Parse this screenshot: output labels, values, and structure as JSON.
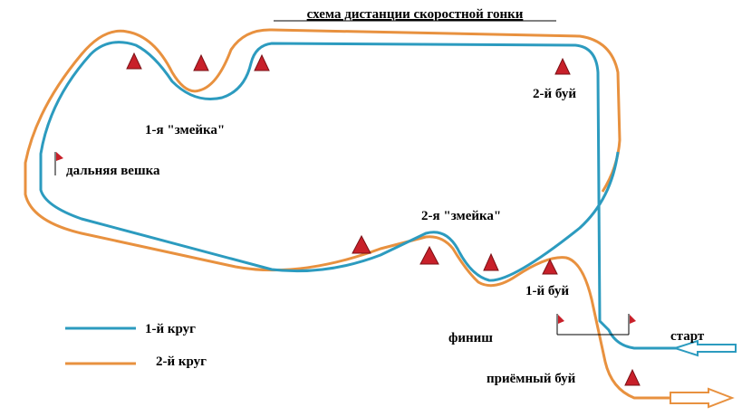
{
  "title": "схема дистанции скоростной гонки",
  "labels": [
    "1-я \"змейка\"",
    "дальняя вешка",
    "2-й буй",
    "2-я \"змейка\"",
    "1-й буй",
    "финиш",
    "старт",
    "приёмный буй"
  ],
  "legend": [
    {
      "label": "1-й круг"
    },
    {
      "label": "2-й круг"
    }
  ]
}
